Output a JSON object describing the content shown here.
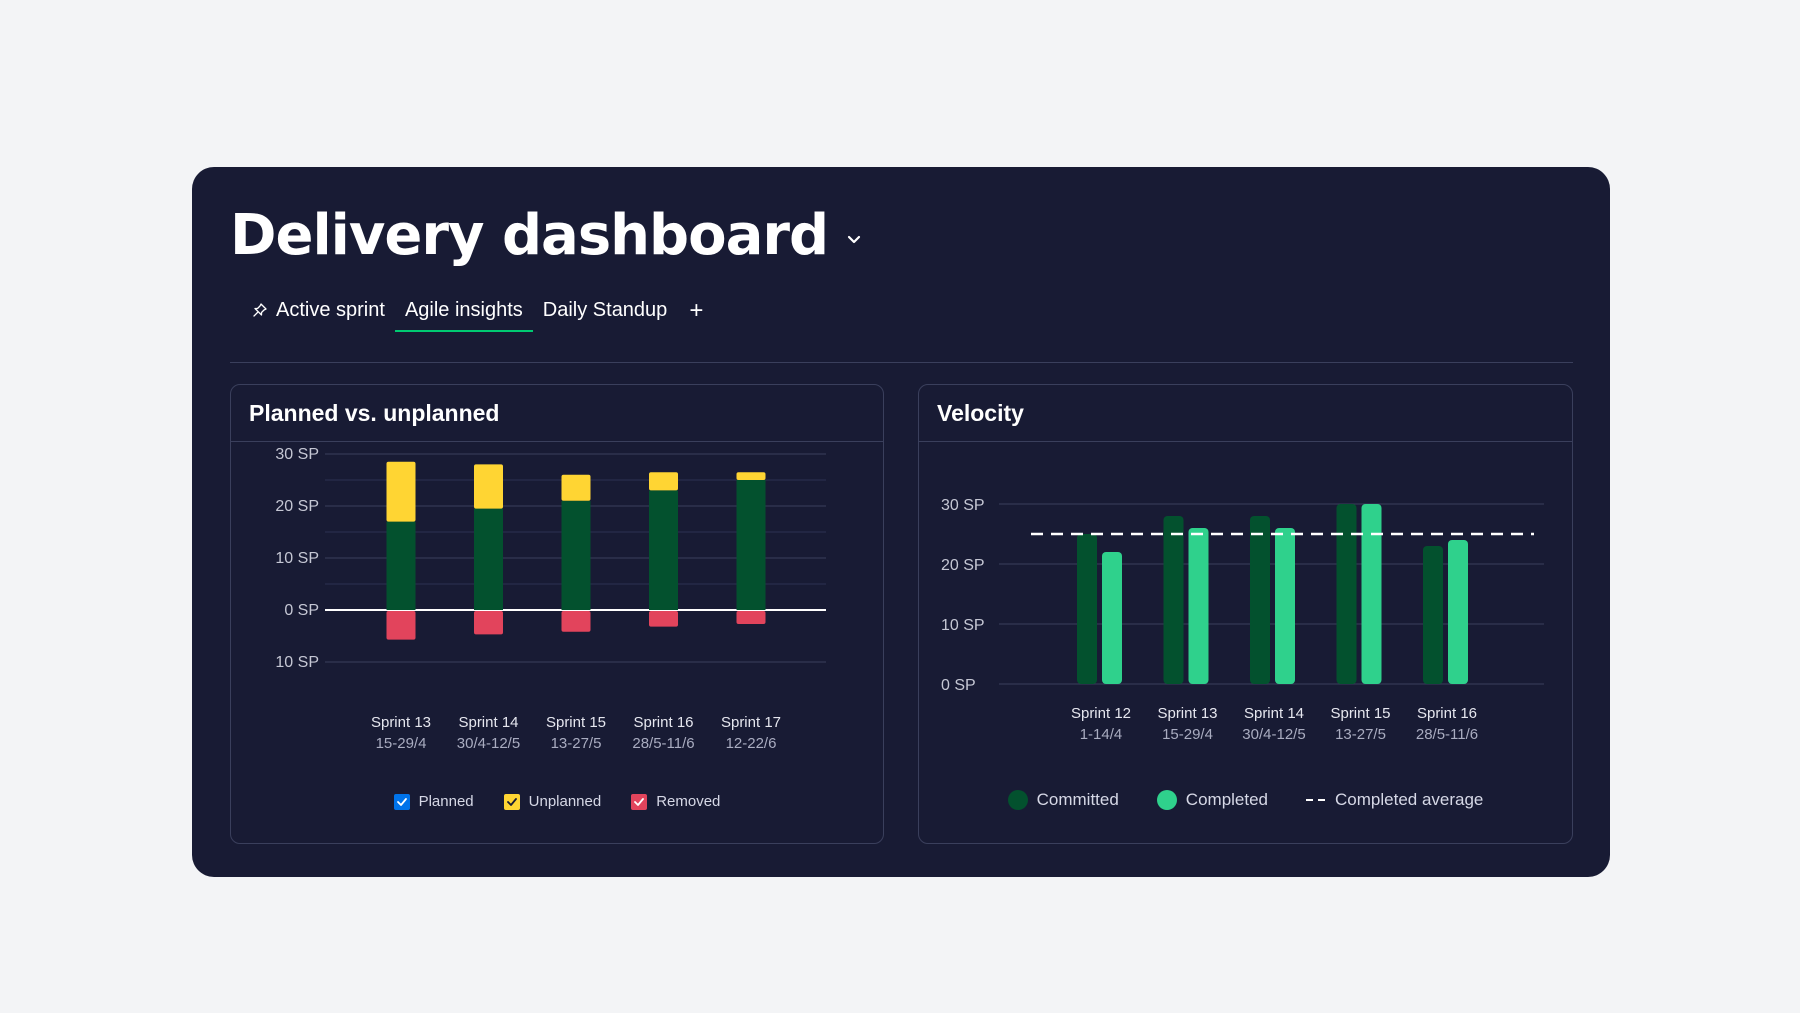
{
  "dashboard": {
    "title": "Delivery dashboard",
    "tabs": [
      {
        "label": "Active sprint",
        "icon": "pin-icon"
      },
      {
        "label": "Agile insights",
        "active": true
      },
      {
        "label": "Daily Standup"
      }
    ],
    "add_tab_label": "+"
  },
  "colors": {
    "board_bg": "#181b34",
    "planned": "#03512e",
    "unplanned": "#ffd533",
    "removed": "#e2445c",
    "committed": "#03512e",
    "completed": "#2fd18c",
    "legend_planned_check": "#0073ea",
    "accent": "#00ca72"
  },
  "planned_card": {
    "title": "Planned vs. unplanned"
  },
  "velocity_card": {
    "title": "Velocity"
  },
  "chart_data": [
    {
      "type": "bar",
      "stacked": true,
      "title": "Planned vs. unplanned",
      "categories": [
        "Sprint 13",
        "Sprint 14",
        "Sprint 15",
        "Sprint 16",
        "Sprint 17"
      ],
      "category_dates": [
        "15-29/4",
        "30/4-12/5",
        "13-27/5",
        "28/5-11/6",
        "12-22/6"
      ],
      "series": [
        {
          "name": "Planned",
          "values": [
            17,
            19.5,
            21,
            23,
            25
          ]
        },
        {
          "name": "Unplanned",
          "values": [
            11.5,
            8.5,
            5,
            3.5,
            1.5
          ]
        },
        {
          "name": "Removed",
          "values": [
            -5.5,
            -4.5,
            -4,
            -3,
            -2.5
          ]
        }
      ],
      "y_ticks": [
        30,
        20,
        10,
        0,
        -10
      ],
      "y_tick_labels": [
        "30 SP",
        "20 SP",
        "10 SP",
        "0 SP",
        "10 SP"
      ],
      "ylim": [
        -10,
        30
      ],
      "legend": [
        "Planned",
        "Unplanned",
        "Removed"
      ]
    },
    {
      "type": "bar",
      "title": "Velocity",
      "categories": [
        "Sprint 12",
        "Sprint 13",
        "Sprint 14",
        "Sprint 15",
        "Sprint 16"
      ],
      "category_dates": [
        "1-14/4",
        "15-29/4",
        "30/4-12/5",
        "13-27/5",
        "28/5-11/6"
      ],
      "series": [
        {
          "name": "Committed",
          "values": [
            25,
            28,
            28,
            30,
            23
          ]
        },
        {
          "name": "Completed",
          "values": [
            22,
            26,
            26,
            30,
            24
          ]
        }
      ],
      "completed_average": 25,
      "y_ticks": [
        30,
        20,
        10,
        0
      ],
      "y_tick_labels": [
        "30 SP",
        "20 SP",
        "10 SP",
        "0 SP"
      ],
      "ylim": [
        0,
        30
      ],
      "legend": [
        "Committed",
        "Completed",
        "Completed average"
      ]
    }
  ]
}
